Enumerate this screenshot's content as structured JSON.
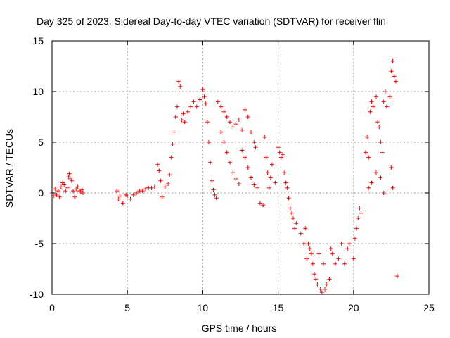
{
  "chart_data": {
    "type": "scatter",
    "title": "Day 325 of 2023, Sidereal Day-to-day VTEC variation (SDTVAR) for receiver flin",
    "xlabel": "GPS time / hours",
    "ylabel": "SDTVAR / TECUs",
    "xlim": [
      0,
      25
    ],
    "ylim": [
      -10,
      15
    ],
    "x_ticks": [
      0,
      5,
      10,
      15,
      20,
      25
    ],
    "y_ticks": [
      -10,
      -5,
      0,
      5,
      10,
      15
    ],
    "x_tick_labels": [
      "0",
      "5",
      "10",
      "15",
      "20",
      "25"
    ],
    "y_tick_labels": [
      "-10",
      "-5",
      "0",
      "5",
      "10",
      "15"
    ],
    "grid": true,
    "marker": "+",
    "series": [
      {
        "name": "SDTVAR",
        "color": "#ff0000",
        "points": [
          [
            0.0,
            0.0
          ],
          [
            0.1,
            -0.3
          ],
          [
            0.2,
            0.4
          ],
          [
            0.3,
            -0.2
          ],
          [
            0.4,
            0.2
          ],
          [
            0.5,
            -0.4
          ],
          [
            0.6,
            0.6
          ],
          [
            0.7,
            1.0
          ],
          [
            0.8,
            0.8
          ],
          [
            0.9,
            0.2
          ],
          [
            1.0,
            0.5
          ],
          [
            1.1,
            1.6
          ],
          [
            1.15,
            1.9
          ],
          [
            1.2,
            1.4
          ],
          [
            1.3,
            1.2
          ],
          [
            1.4,
            0.2
          ],
          [
            1.5,
            -0.4
          ],
          [
            1.6,
            0.4
          ],
          [
            1.7,
            0.6
          ],
          [
            1.8,
            0.2
          ],
          [
            1.9,
            0.1
          ],
          [
            2.0,
            0.3
          ],
          [
            2.05,
            0.0
          ],
          [
            4.3,
            0.2
          ],
          [
            4.4,
            -0.6
          ],
          [
            4.5,
            -0.3
          ],
          [
            4.7,
            -1.0
          ],
          [
            4.9,
            -0.2
          ],
          [
            5.0,
            -0.3
          ],
          [
            5.2,
            -0.6
          ],
          [
            5.4,
            -0.2
          ],
          [
            5.6,
            0.0
          ],
          [
            5.8,
            0.2
          ],
          [
            6.0,
            0.2
          ],
          [
            6.2,
            0.4
          ],
          [
            6.4,
            0.5
          ],
          [
            6.6,
            0.5
          ],
          [
            6.8,
            0.6
          ],
          [
            7.0,
            2.8
          ],
          [
            7.1,
            2.2
          ],
          [
            7.2,
            1.2
          ],
          [
            7.3,
            -0.4
          ],
          [
            7.5,
            0.6
          ],
          [
            7.7,
            0.9
          ],
          [
            7.8,
            1.8
          ],
          [
            7.9,
            3.5
          ],
          [
            8.0,
            4.8
          ],
          [
            8.1,
            6.0
          ],
          [
            8.2,
            7.5
          ],
          [
            8.3,
            8.5
          ],
          [
            8.4,
            11.0
          ],
          [
            8.5,
            10.5
          ],
          [
            8.6,
            7.2
          ],
          [
            8.7,
            7.8
          ],
          [
            8.8,
            7.0
          ],
          [
            9.0,
            8.0
          ],
          [
            9.2,
            8.5
          ],
          [
            9.4,
            9.0
          ],
          [
            9.6,
            8.5
          ],
          [
            9.8,
            9.2
          ],
          [
            10.0,
            10.2
          ],
          [
            10.1,
            9.5
          ],
          [
            10.2,
            8.8
          ],
          [
            10.3,
            7.0
          ],
          [
            10.4,
            5.0
          ],
          [
            10.5,
            3.0
          ],
          [
            10.6,
            1.2
          ],
          [
            10.7,
            0.3
          ],
          [
            10.8,
            -0.2
          ],
          [
            10.9,
            -0.5
          ],
          [
            11.0,
            9.0
          ],
          [
            11.2,
            8.5
          ],
          [
            11.4,
            8.0
          ],
          [
            11.6,
            7.5
          ],
          [
            11.8,
            7.0
          ],
          [
            12.0,
            6.5
          ],
          [
            12.2,
            6.8
          ],
          [
            12.4,
            7.2
          ],
          [
            12.6,
            6.2
          ],
          [
            12.8,
            8.2
          ],
          [
            13.0,
            7.5
          ],
          [
            13.2,
            6.0
          ],
          [
            13.4,
            5.0
          ],
          [
            13.5,
            4.5
          ],
          [
            11.2,
            6.0
          ],
          [
            11.4,
            5.0
          ],
          [
            11.6,
            4.0
          ],
          [
            11.8,
            3.0
          ],
          [
            12.0,
            2.0
          ],
          [
            12.2,
            1.4
          ],
          [
            12.4,
            0.9
          ],
          [
            12.6,
            4.2
          ],
          [
            12.8,
            3.5
          ],
          [
            13.0,
            2.5
          ],
          [
            13.2,
            1.5
          ],
          [
            13.4,
            0.8
          ],
          [
            13.6,
            0.5
          ],
          [
            13.8,
            -1.0
          ],
          [
            14.0,
            -1.2
          ],
          [
            14.1,
            5.5
          ],
          [
            14.2,
            3.5
          ],
          [
            14.3,
            2.0
          ],
          [
            14.4,
            0.5
          ],
          [
            14.5,
            1.5
          ],
          [
            14.6,
            2.8
          ],
          [
            14.8,
            1.0
          ],
          [
            15.0,
            4.5
          ],
          [
            15.1,
            4.0
          ],
          [
            15.2,
            3.5
          ],
          [
            15.3,
            3.8
          ],
          [
            15.4,
            2.0
          ],
          [
            15.5,
            1.0
          ],
          [
            15.6,
            0.5
          ],
          [
            15.7,
            -0.5
          ],
          [
            15.8,
            -1.5
          ],
          [
            15.9,
            -2.0
          ],
          [
            16.0,
            -2.5
          ],
          [
            16.1,
            -3.5
          ],
          [
            16.2,
            -3.0
          ],
          [
            16.5,
            -4.0
          ],
          [
            16.7,
            -5.0
          ],
          [
            16.8,
            -3.5
          ],
          [
            16.9,
            -6.5
          ],
          [
            17.0,
            -5.0
          ],
          [
            17.1,
            -5.5
          ],
          [
            17.2,
            -6.0
          ],
          [
            17.3,
            -7.0
          ],
          [
            17.4,
            -8.0
          ],
          [
            17.5,
            -8.5
          ],
          [
            17.6,
            -9.0
          ],
          [
            17.7,
            -6.0
          ],
          [
            17.8,
            -9.5
          ],
          [
            17.9,
            -9.8
          ],
          [
            18.0,
            -7.0
          ],
          [
            18.1,
            -9.5
          ],
          [
            18.2,
            -9.0
          ],
          [
            18.4,
            -8.5
          ],
          [
            18.5,
            -5.5
          ],
          [
            18.6,
            -6.0
          ],
          [
            18.8,
            -7.0
          ],
          [
            19.0,
            -6.5
          ],
          [
            19.2,
            -5.0
          ],
          [
            19.4,
            -7.0
          ],
          [
            19.6,
            -5.5
          ],
          [
            19.7,
            -5.0
          ],
          [
            20.0,
            -6.5
          ],
          [
            20.1,
            -4.5
          ],
          [
            20.2,
            -3.5
          ],
          [
            20.3,
            -2.5
          ],
          [
            20.4,
            -1.5
          ],
          [
            20.5,
            -2.0
          ],
          [
            20.8,
            4.0
          ],
          [
            20.9,
            5.5
          ],
          [
            21.0,
            3.5
          ],
          [
            21.1,
            8.0
          ],
          [
            21.2,
            9.0
          ],
          [
            21.3,
            8.5
          ],
          [
            21.5,
            9.5
          ],
          [
            21.6,
            7.0
          ],
          [
            21.7,
            6.5
          ],
          [
            21.8,
            5.0
          ],
          [
            21.9,
            4.0
          ],
          [
            22.0,
            9.0
          ],
          [
            22.1,
            10.0
          ],
          [
            22.2,
            8.5
          ],
          [
            22.4,
            9.5
          ],
          [
            22.5,
            12.0
          ],
          [
            22.6,
            13.0
          ],
          [
            22.7,
            11.5
          ],
          [
            22.8,
            11.0
          ],
          [
            21.0,
            0.5
          ],
          [
            21.2,
            1.0
          ],
          [
            21.5,
            2.0
          ],
          [
            21.8,
            1.5
          ],
          [
            22.0,
            0.0
          ],
          [
            22.5,
            2.5
          ],
          [
            22.6,
            0.5
          ],
          [
            22.9,
            -8.2
          ]
        ]
      }
    ]
  }
}
